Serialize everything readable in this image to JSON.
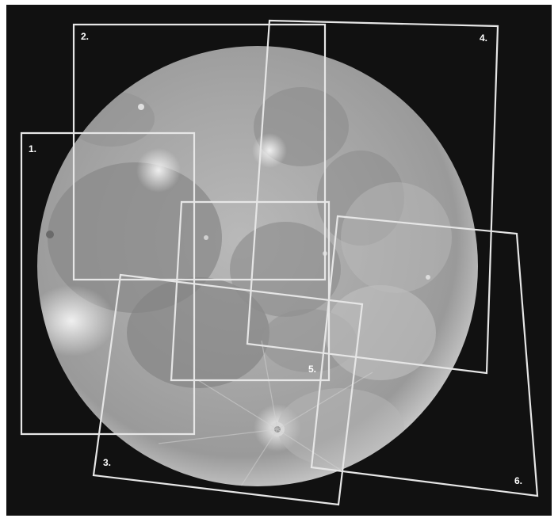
{
  "image": {
    "subject": "full-moon-photograph",
    "background_color": "#111111",
    "overlay_color": "#e6e6e6"
  },
  "regions": [
    {
      "label": "1."
    },
    {
      "label": "2."
    },
    {
      "label": "3."
    },
    {
      "label": "4."
    },
    {
      "label": "5."
    },
    {
      "label": "6."
    }
  ]
}
